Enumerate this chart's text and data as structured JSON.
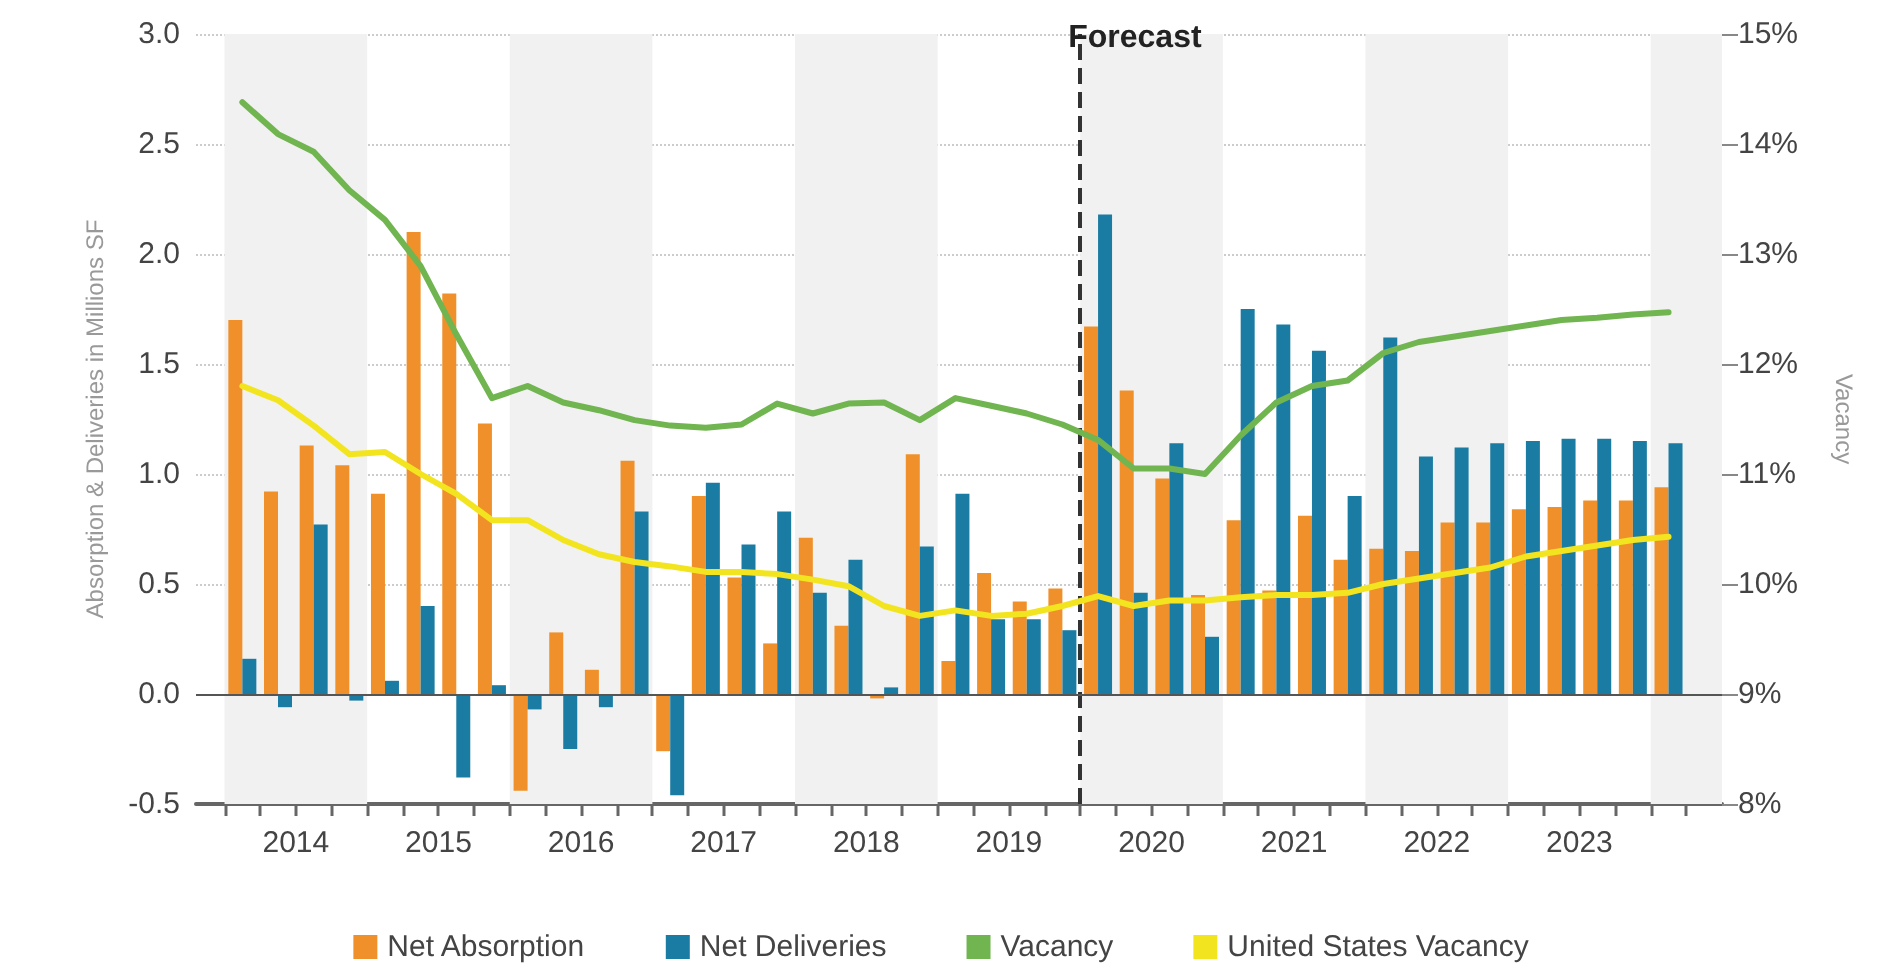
{
  "chart_data": {
    "type": "bar",
    "xlabel": null,
    "ylabel": "Absorption & Deliveries in Millions SF",
    "y2label": "Vacancy",
    "x": [
      2014.125,
      2014.375,
      2014.625,
      2014.875,
      2015.125,
      2015.375,
      2015.625,
      2015.875,
      2016.125,
      2016.375,
      2016.625,
      2016.875,
      2017.125,
      2017.375,
      2017.625,
      2017.875,
      2018.125,
      2018.375,
      2018.625,
      2018.875,
      2019.125,
      2019.375,
      2019.625,
      2019.875,
      2020.125,
      2020.375,
      2020.625,
      2020.875,
      2021.125,
      2021.375,
      2021.625,
      2021.875,
      2022.125,
      2022.375,
      2022.625,
      2022.875,
      2023.125,
      2023.375,
      2023.625,
      2023.875,
      2024.125
    ],
    "series": [
      {
        "name": "Net Absorption",
        "color": "#f0902a",
        "values": [
          1.7,
          0.92,
          1.13,
          1.04,
          0.91,
          2.1,
          1.82,
          1.23,
          -0.44,
          0.28,
          0.11,
          1.06,
          -0.26,
          0.9,
          0.53,
          0.23,
          0.71,
          0.31,
          -0.02,
          1.09,
          0.15,
          0.55,
          0.42,
          0.48,
          1.67,
          1.38,
          0.98,
          0.45,
          0.79,
          0.47,
          0.81,
          0.61,
          0.66,
          0.65,
          0.78,
          0.78,
          0.84,
          0.85,
          0.88,
          0.88,
          0.94
        ]
      },
      {
        "name": "Net Deliveries",
        "color": "#1b7ca3",
        "values": [
          0.16,
          -0.06,
          0.77,
          -0.03,
          0.06,
          0.4,
          -0.38,
          0.04,
          -0.07,
          -0.25,
          -0.06,
          0.83,
          -0.46,
          0.96,
          0.68,
          0.83,
          0.46,
          0.61,
          0.03,
          0.67,
          0.91,
          0.34,
          0.34,
          0.29,
          2.18,
          0.46,
          1.14,
          0.26,
          1.75,
          1.68,
          1.56,
          0.9,
          1.62,
          1.08,
          1.12,
          1.14,
          1.15,
          1.16,
          1.16,
          1.15,
          1.14
        ]
      },
      {
        "name": "Vacancy",
        "type": "line",
        "axis": "y2",
        "color": "#70b550",
        "values": [
          14.38,
          14.09,
          13.93,
          13.58,
          13.31,
          12.89,
          12.27,
          11.69,
          11.8,
          11.65,
          11.58,
          11.49,
          11.44,
          11.42,
          11.45,
          11.64,
          11.55,
          11.64,
          11.65,
          11.49,
          11.69,
          11.62,
          11.55,
          11.45,
          11.31,
          11.05,
          11.05,
          11.0,
          11.35,
          11.65,
          11.8,
          11.85,
          12.1,
          12.2,
          12.25,
          12.3,
          12.35,
          12.4,
          12.42,
          12.45,
          12.47
        ]
      },
      {
        "name": "United States Vacancy",
        "type": "line",
        "axis": "y2",
        "color": "#f2e51f",
        "values": [
          11.8,
          11.67,
          11.44,
          11.18,
          11.2,
          11.0,
          10.82,
          10.58,
          10.58,
          10.4,
          10.27,
          10.2,
          10.16,
          10.11,
          10.11,
          10.09,
          10.04,
          9.98,
          9.8,
          9.71,
          9.76,
          9.71,
          9.73,
          9.8,
          9.89,
          9.8,
          9.85,
          9.85,
          9.88,
          9.9,
          9.9,
          9.92,
          10.0,
          10.05,
          10.1,
          10.15,
          10.25,
          10.3,
          10.35,
          10.4,
          10.43
        ]
      }
    ],
    "xlim": [
      2013.8,
      2024.5
    ],
    "xticks": [
      {
        "value": 2014,
        "label": null
      },
      {
        "value": 2014.25,
        "label": null
      },
      {
        "value": 2014.5,
        "label": "2014"
      },
      {
        "value": 2014.75,
        "label": null
      },
      {
        "value": 2015,
        "label": null
      },
      {
        "value": 2015.25,
        "label": null
      },
      {
        "value": 2015.5,
        "label": "2015"
      },
      {
        "value": 2015.75,
        "label": null
      },
      {
        "value": 2016,
        "label": null
      },
      {
        "value": 2016.25,
        "label": null
      },
      {
        "value": 2016.5,
        "label": "2016"
      },
      {
        "value": 2016.75,
        "label": null
      },
      {
        "value": 2017,
        "label": null
      },
      {
        "value": 2017.25,
        "label": null
      },
      {
        "value": 2017.5,
        "label": "2017"
      },
      {
        "value": 2017.75,
        "label": null
      },
      {
        "value": 2018,
        "label": null
      },
      {
        "value": 2018.25,
        "label": null
      },
      {
        "value": 2018.5,
        "label": "2018"
      },
      {
        "value": 2018.75,
        "label": null
      },
      {
        "value": 2019,
        "label": null
      },
      {
        "value": 2019.25,
        "label": null
      },
      {
        "value": 2019.5,
        "label": "2019"
      },
      {
        "value": 2019.75,
        "label": null
      },
      {
        "value": 2020,
        "label": null
      },
      {
        "value": 2020.25,
        "label": null
      },
      {
        "value": 2020.5,
        "label": "2020"
      },
      {
        "value": 2020.75,
        "label": null
      },
      {
        "value": 2021,
        "label": null
      },
      {
        "value": 2021.25,
        "label": null
      },
      {
        "value": 2021.5,
        "label": "2021"
      },
      {
        "value": 2021.75,
        "label": null
      },
      {
        "value": 2022,
        "label": null
      },
      {
        "value": 2022.25,
        "label": null
      },
      {
        "value": 2022.5,
        "label": "2022"
      },
      {
        "value": 2022.75,
        "label": null
      },
      {
        "value": 2023,
        "label": null
      },
      {
        "value": 2023.25,
        "label": null
      },
      {
        "value": 2023.5,
        "label": "2023"
      },
      {
        "value": 2023.75,
        "label": null
      },
      {
        "value": 2024,
        "label": null
      },
      {
        "value": 2024.25,
        "label": null
      }
    ],
    "ylim": [
      -0.5,
      3.0
    ],
    "yticks": [
      {
        "value": -0.5,
        "label": "-0.5"
      },
      {
        "value": 0,
        "label": "0.0"
      },
      {
        "value": 0.5,
        "label": "0.5"
      },
      {
        "value": 1,
        "label": "1.0"
      },
      {
        "value": 1.5,
        "label": "1.5"
      },
      {
        "value": 2,
        "label": "2.0"
      },
      {
        "value": 2.5,
        "label": "2.5"
      },
      {
        "value": 3,
        "label": "3.0"
      }
    ],
    "y2lim": [
      8,
      15
    ],
    "y2ticks": [
      {
        "value": 8,
        "label": "8%"
      },
      {
        "value": 9,
        "label": "9%"
      },
      {
        "value": 10,
        "label": "10%"
      },
      {
        "value": 11,
        "label": "11%"
      },
      {
        "value": 12,
        "label": "12%"
      },
      {
        "value": 13,
        "label": "13%"
      },
      {
        "value": 14,
        "label": "14%"
      },
      {
        "value": 15,
        "label": "15%"
      }
    ],
    "ref_lines": [
      {
        "axis": "x",
        "value": 2020,
        "label": "Forecast",
        "color": "#333333",
        "line_style": "dashed"
      },
      {
        "axis": "y",
        "value": 0,
        "label": null,
        "color": "#555555",
        "line_style": "solid"
      }
    ],
    "bands": [
      {
        "axis": "x",
        "from": 2014,
        "to": 2015,
        "label": null,
        "color": "#f1f1f1"
      },
      {
        "axis": "x",
        "from": 2016,
        "to": 2017,
        "label": null,
        "color": "#f1f1f1"
      },
      {
        "axis": "x",
        "from": 2018,
        "to": 2019,
        "label": null,
        "color": "#f1f1f1"
      },
      {
        "axis": "x",
        "from": 2020,
        "to": 2021,
        "label": null,
        "color": "#f1f1f1"
      },
      {
        "axis": "x",
        "from": 2022,
        "to": 2023,
        "label": null,
        "color": "#f1f1f1"
      },
      {
        "axis": "x",
        "from": 2024,
        "to": 2024.5,
        "label": null,
        "color": "#f1f1f1"
      }
    ],
    "grid": "y",
    "legend": "bottom",
    "marker": "none",
    "line_style": "solid"
  }
}
